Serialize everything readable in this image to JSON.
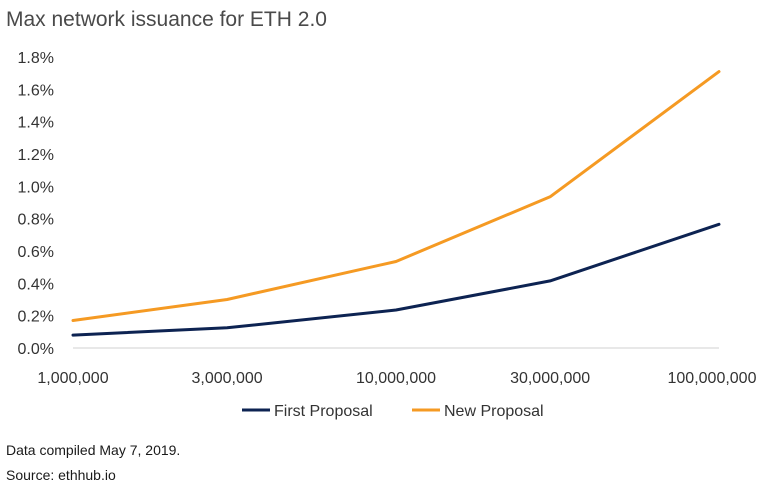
{
  "chart_data": {
    "type": "line",
    "title": "Max network issuance for ETH 2.0",
    "x_scale": "log",
    "x": [
      1000000,
      3000000,
      10000000,
      30000000,
      100000000
    ],
    "x_tick_labels": [
      "1,000,000",
      "3,000,000",
      "10,000,000",
      "30,000,000",
      "100,000,000"
    ],
    "y_tick_labels": [
      "0.0%",
      "0.2%",
      "0.4%",
      "0.6%",
      "0.8%",
      "1.0%",
      "1.2%",
      "1.4%",
      "1.6%",
      "1.8%"
    ],
    "ylim": [
      0,
      1.8
    ],
    "y_unit": "%",
    "grid": false,
    "legend_position": "bottom",
    "series": [
      {
        "name": "First Proposal",
        "color": "#0d2352",
        "values": [
          0.08,
          0.125,
          0.235,
          0.415,
          0.765
        ]
      },
      {
        "name": "New Proposal",
        "color": "#f59a23",
        "values": [
          0.17,
          0.3,
          0.535,
          0.935,
          1.71
        ]
      }
    ]
  },
  "notes": {
    "compiled": "Data compiled May 7, 2019.",
    "source": "Source: ethhub.io"
  }
}
